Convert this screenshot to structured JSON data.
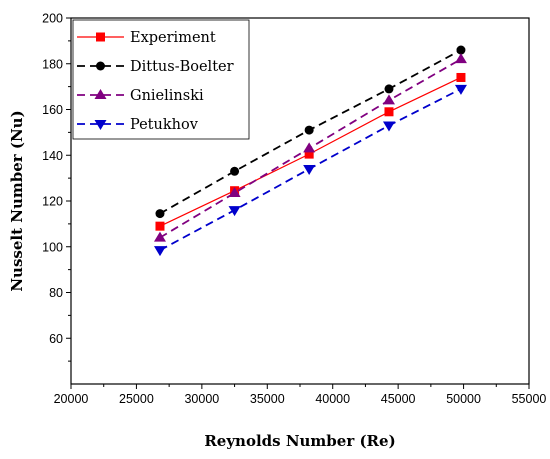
{
  "chart_data": {
    "type": "line",
    "xlabel": "Reynolds Number (Re)",
    "ylabel": "Nusselt Number (Nu)",
    "xlim": [
      20000,
      55000
    ],
    "ylim": [
      40,
      200
    ],
    "xticks": [
      "20000",
      "25000",
      "30000",
      "35000",
      "40000",
      "45000",
      "50000",
      "55000"
    ],
    "yticks": [
      "60",
      "80",
      "100",
      "120",
      "140",
      "160",
      "180",
      "200"
    ],
    "grid": false,
    "legend_position": "top-left",
    "series": [
      {
        "name": "Experiment",
        "color": "#ff0000",
        "marker": "square",
        "dash": "solid",
        "x": [
          26800,
          32500,
          38200,
          44300,
          49800
        ],
        "y": [
          109,
          124.5,
          140.5,
          159,
          174
        ]
      },
      {
        "name": "Dittus-Boelter",
        "color": "#000000",
        "marker": "circle",
        "dash": "dashed",
        "x": [
          26800,
          32500,
          38200,
          44300,
          49800
        ],
        "y": [
          114.5,
          133,
          151,
          169,
          186
        ]
      },
      {
        "name": "Gnielinski",
        "color": "#800080",
        "marker": "triangle-up",
        "dash": "dashed",
        "x": [
          26800,
          32500,
          38200,
          44300,
          49800
        ],
        "y": [
          104,
          123.5,
          143,
          164,
          182
        ]
      },
      {
        "name": "Petukhov",
        "color": "#0000cc",
        "marker": "triangle-down",
        "dash": "dashed",
        "x": [
          26800,
          32500,
          38200,
          44300,
          49800
        ],
        "y": [
          98.5,
          116,
          134,
          153,
          169
        ]
      }
    ]
  }
}
